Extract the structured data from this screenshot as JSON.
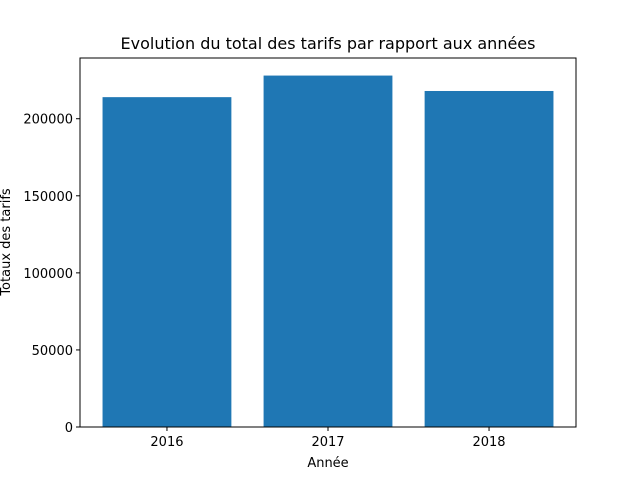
{
  "chart_data": {
    "type": "bar",
    "title": "Evolution du total des tarifs par rapport aux années",
    "xlabel": "Année",
    "ylabel": "Totaux des tarifs",
    "categories": [
      "2016",
      "2017",
      "2018"
    ],
    "values": [
      214000,
      228000,
      218000
    ],
    "ylim": [
      0,
      239400
    ],
    "yticks": [
      0,
      50000,
      100000,
      150000,
      200000
    ],
    "ytick_labels": [
      "0",
      "50000",
      "100000",
      "150000",
      "200000"
    ],
    "bar_color": "#1f77b4",
    "grid": false,
    "legend": "none"
  }
}
